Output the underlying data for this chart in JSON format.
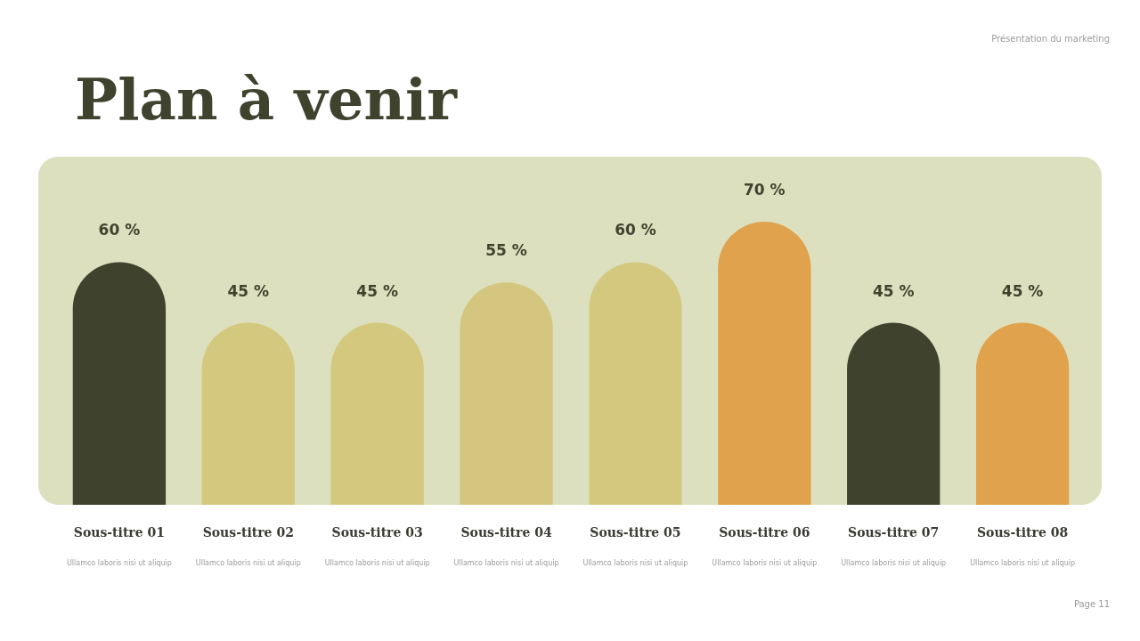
{
  "chart_data": {
    "type": "bar",
    "title": "Plan à venir",
    "categories": [
      "Sous-titre 01",
      "Sous-titre 02",
      "Sous-titre 03",
      "Sous-titre 04",
      "Sous-titre 05",
      "Sous-titre 06",
      "Sous-titre 07",
      "Sous-titre 08"
    ],
    "values": [
      60,
      45,
      45,
      55,
      60,
      70,
      45,
      45
    ],
    "value_labels": [
      "60 %",
      "45 %",
      "45 %",
      "55 %",
      "60 %",
      "70 %",
      "45 %",
      "45 %"
    ],
    "colors": [
      "#3f432e",
      "#d4c87e",
      "#d4c87e",
      "#d4c67e",
      "#d4c87e",
      "#e0a24c",
      "#3f432e",
      "#e0a24c"
    ],
    "annotations": [
      "Présentation du marketing",
      "Page 11",
      "Ullamco laboris nisi ut aliquip",
      "Ullamco laboris nisi ut aliquip",
      "Ullamco laboris nisi ut aliquip",
      "Ullamco laboris nisi ut aliquip",
      "Ullamco laboris nisi ut aliquip",
      "Ullamco laboris nisi ut aliquip",
      "Ullamco laboris nisi ut aliquip",
      "Ullamco laboris nisi ut aliquip"
    ]
  }
}
